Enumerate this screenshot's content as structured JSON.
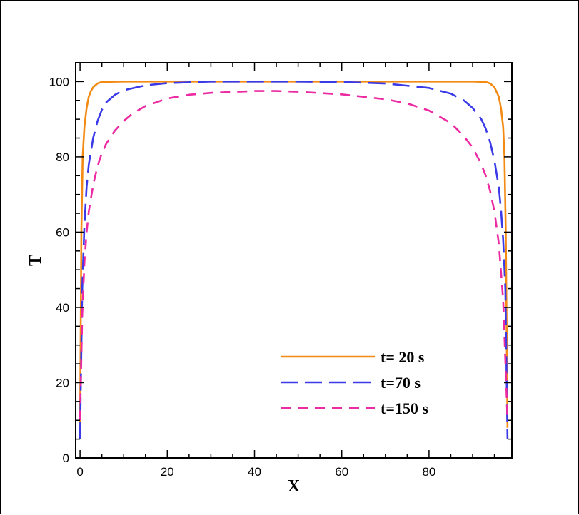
{
  "chart_data": {
    "type": "line",
    "title": "",
    "xlabel": "X",
    "ylabel": "T",
    "xlim": [
      -1,
      99
    ],
    "ylim": [
      0,
      105
    ],
    "x_ticks": [
      0,
      20,
      40,
      60,
      80
    ],
    "y_ticks": [
      0,
      20,
      40,
      60,
      80,
      100
    ],
    "x_tick_labels": [
      "0",
      "20",
      "40",
      "60",
      "80"
    ],
    "y_tick_labels": [
      "0",
      "20",
      "40",
      "60",
      "80",
      "100"
    ],
    "grid": false,
    "legend_position": "bottom-right",
    "series": [
      {
        "name": "t= 20 s",
        "color": "#f28a14",
        "dash": "solid",
        "x": [
          0,
          0.3,
          0.6,
          1,
          1.5,
          2,
          2.5,
          3,
          4,
          5,
          10,
          20,
          40,
          60,
          80,
          90,
          93,
          94,
          95,
          96,
          96.5,
          97,
          97.3,
          97.6,
          98
        ],
        "y": [
          8,
          60,
          80,
          88,
          93,
          96,
          97.5,
          98.5,
          99.5,
          99.9,
          100,
          100,
          100,
          100,
          100,
          100,
          99.9,
          99.5,
          98.5,
          96,
          93,
          88,
          80,
          60,
          8
        ]
      },
      {
        "name": "t=70 s",
        "color": "#3a3ae8",
        "dash": "long-dash",
        "x": [
          0,
          0.5,
          1,
          1.5,
          2,
          3,
          4,
          5,
          6,
          8,
          10,
          15,
          20,
          30,
          40,
          50,
          60,
          70,
          80,
          85,
          88,
          90,
          92,
          93,
          94,
          95,
          96,
          96.5,
          97,
          97.5,
          98
        ],
        "y": [
          5,
          45,
          62,
          72,
          78,
          85,
          89.5,
          92.5,
          94.5,
          96.5,
          97.7,
          99,
          99.6,
          100,
          100,
          100,
          99.9,
          99.5,
          98.3,
          96.8,
          95,
          93,
          90,
          87.5,
          84,
          79,
          72,
          66,
          58,
          45,
          5
        ]
      },
      {
        "name": "t=150 s",
        "color": "#ec2aa2",
        "dash": "short-dash",
        "x": [
          0,
          0.5,
          1,
          1.5,
          2,
          3,
          4,
          5,
          6,
          8,
          10,
          12,
          15,
          20,
          25,
          30,
          40,
          45,
          50,
          60,
          70,
          75,
          80,
          85,
          88,
          90,
          92,
          93,
          94,
          95,
          96,
          97,
          98
        ],
        "y": [
          10,
          38,
          52,
          60,
          65.5,
          72.5,
          77.5,
          81,
          83.5,
          87,
          89.5,
          91.5,
          93.5,
          95.5,
          96.5,
          97,
          97.5,
          97.5,
          97.3,
          96.6,
          95.3,
          94.2,
          92.3,
          89,
          85.5,
          82.5,
          78,
          75,
          71,
          65.5,
          57,
          42,
          10
        ]
      }
    ]
  }
}
